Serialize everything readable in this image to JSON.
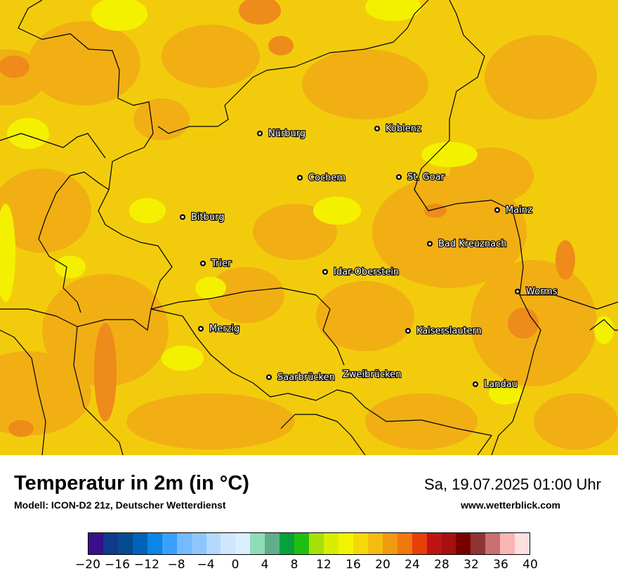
{
  "map": {
    "title": "Temperatur in 2m (in °C)",
    "model": "Modell: ICON-D2 21z, Deutscher Wetterdienst",
    "datetime": "Sa, 19.07.2025 01:00 Uhr",
    "website": "www.wetterblick.com",
    "cities": [
      {
        "name": "Nürburg"
      },
      {
        "name": "Koblenz"
      },
      {
        "name": "Cochem"
      },
      {
        "name": "St. Goar"
      },
      {
        "name": "Mainz"
      },
      {
        "name": "Bitburg"
      },
      {
        "name": "Bad Kreuznach"
      },
      {
        "name": "Trier"
      },
      {
        "name": "Idar-Oberstein"
      },
      {
        "name": "Worms"
      },
      {
        "name": "Merzig"
      },
      {
        "name": "Kaiserslautern"
      },
      {
        "name": "Saarbrücken"
      },
      {
        "name": "Zweibrücken"
      },
      {
        "name": "Landau"
      }
    ],
    "legend": {
      "ticks": [
        "−20",
        "−16",
        "−12",
        "−8",
        "−4",
        "0",
        "4",
        "8",
        "12",
        "16",
        "20",
        "24",
        "28",
        "32",
        "36",
        "40"
      ],
      "colors": [
        "#3a0f8a",
        "#0f3a8c",
        "#064a8f",
        "#0063b9",
        "#0a86e6",
        "#3aa0ff",
        "#73baff",
        "#8dc6ff",
        "#b4d9ff",
        "#cfe6ff",
        "#dbeeff",
        "#90dcb8",
        "#5fb08a",
        "#07a13c",
        "#1fbf12",
        "#a7e00a",
        "#d8ee00",
        "#f3f500",
        "#f6d808",
        "#f4bd0d",
        "#f09b10",
        "#f0780f",
        "#e83e0a",
        "#bf1414",
        "#a71010",
        "#7a0000",
        "#8e3434",
        "#c87070",
        "#fbb4b4",
        "#ffdede"
      ]
    },
    "colors": {
      "base": "#f2cc0c",
      "warm": "#f1af14",
      "hot": "#ee8b1a",
      "cool": "#f4f100",
      "border": "#000000"
    }
  }
}
